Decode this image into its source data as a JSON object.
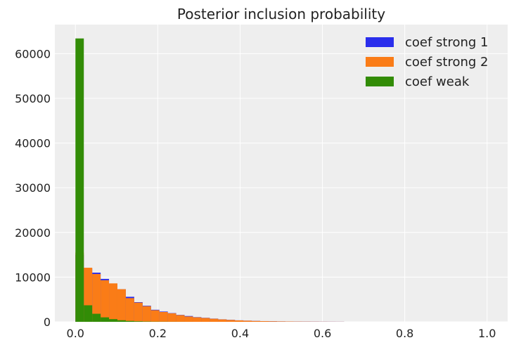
{
  "chart_data": {
    "type": "bar",
    "subtype": "histogram",
    "title": "Posterior inclusion probability",
    "xlabel": "",
    "ylabel": "",
    "xlim": [
      -0.05,
      1.05
    ],
    "ylim": [
      0,
      66500
    ],
    "x_ticks": [
      0.0,
      0.2,
      0.4,
      0.6,
      0.8,
      1.0
    ],
    "x_tick_labels": [
      "0.0",
      "0.2",
      "0.4",
      "0.6",
      "0.8",
      "1.0"
    ],
    "y_ticks": [
      0,
      10000,
      20000,
      30000,
      40000,
      50000,
      60000
    ],
    "y_tick_labels": [
      "0",
      "10000",
      "20000",
      "30000",
      "40000",
      "50000",
      "60000"
    ],
    "grid": true,
    "legend_position": "top-right",
    "bin_width": 0.0204,
    "series": [
      {
        "name": "coef strong 1",
        "color": "#2a2eec",
        "bin_edges_start": 0.0,
        "counts": [
          15000,
          12000,
          11000,
          9600,
          8500,
          7300,
          5600,
          4400,
          3600,
          2700,
          2300,
          1950,
          1550,
          1300,
          1050,
          900,
          720,
          560,
          440,
          330,
          260,
          200,
          160,
          130,
          100,
          80,
          60,
          50,
          40,
          30,
          25,
          20
        ]
      },
      {
        "name": "coef strong 2",
        "color": "#fa7c17",
        "bin_edges_start": 0.0,
        "counts": [
          15500,
          12100,
          10700,
          9300,
          8600,
          7300,
          5300,
          4300,
          3500,
          2600,
          2200,
          1900,
          1500,
          1200,
          1000,
          860,
          690,
          540,
          420,
          320,
          250,
          190,
          150,
          120,
          90,
          70,
          55,
          45,
          35,
          28,
          22,
          18
        ]
      },
      {
        "name": "coef weak",
        "color": "#328c06",
        "bin_edges_start": 0.0,
        "counts": [
          63400,
          3700,
          1800,
          1000,
          600,
          350,
          200,
          120,
          70,
          40,
          25,
          15,
          10,
          5
        ]
      }
    ]
  }
}
